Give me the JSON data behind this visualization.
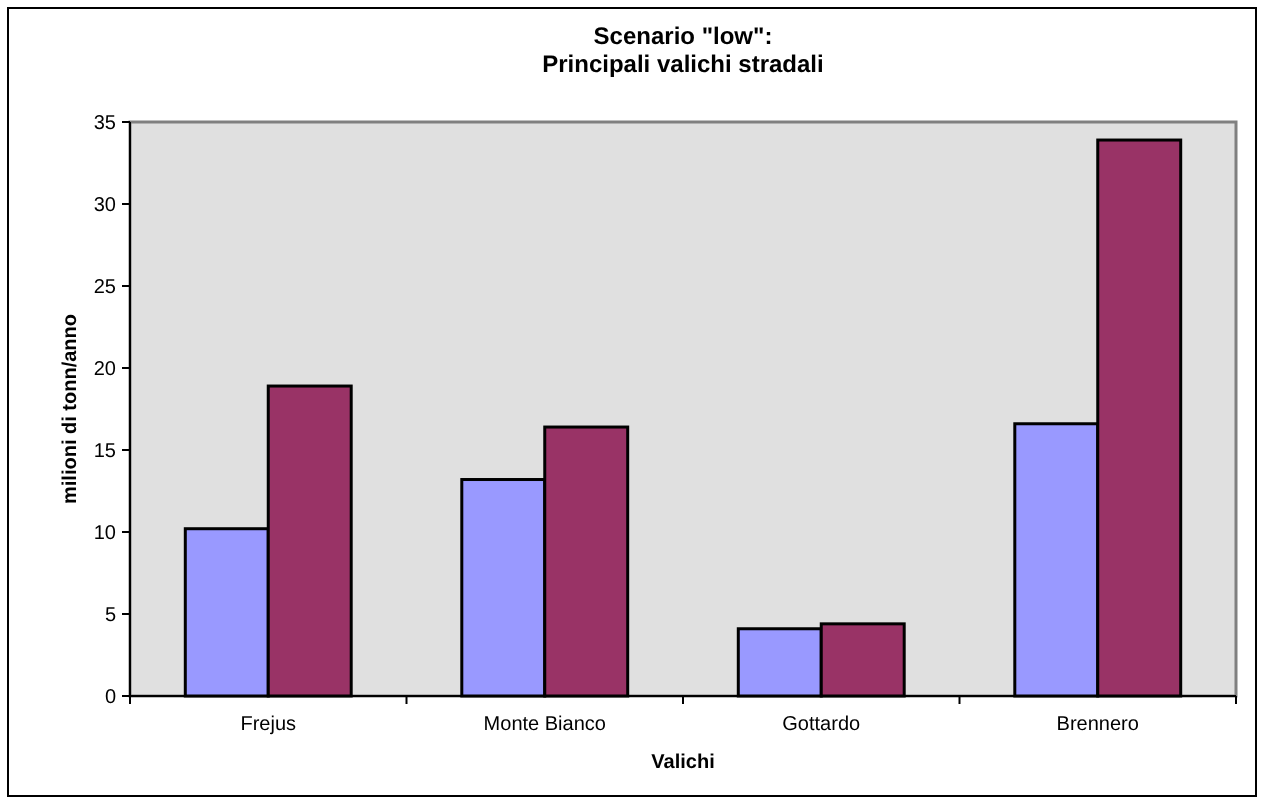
{
  "chart_data": {
    "type": "bar",
    "title": "Scenario \"low\":\nPrincipali valichi stradali",
    "xlabel": "Valichi",
    "ylabel": "milioni di tonn/anno",
    "categories": [
      "Frejus",
      "Monte Bianco",
      "Gottardo",
      "Brennero"
    ],
    "series": [
      {
        "color": "#9999ff",
        "values": [
          10.2,
          13.2,
          4.1,
          16.6
        ]
      },
      {
        "color": "#993366",
        "values": [
          18.9,
          16.4,
          4.4,
          33.9
        ]
      }
    ],
    "ylim": [
      0,
      35
    ],
    "yticks": [
      0,
      5,
      10,
      15,
      20,
      25,
      30,
      35
    ],
    "grid": false
  }
}
